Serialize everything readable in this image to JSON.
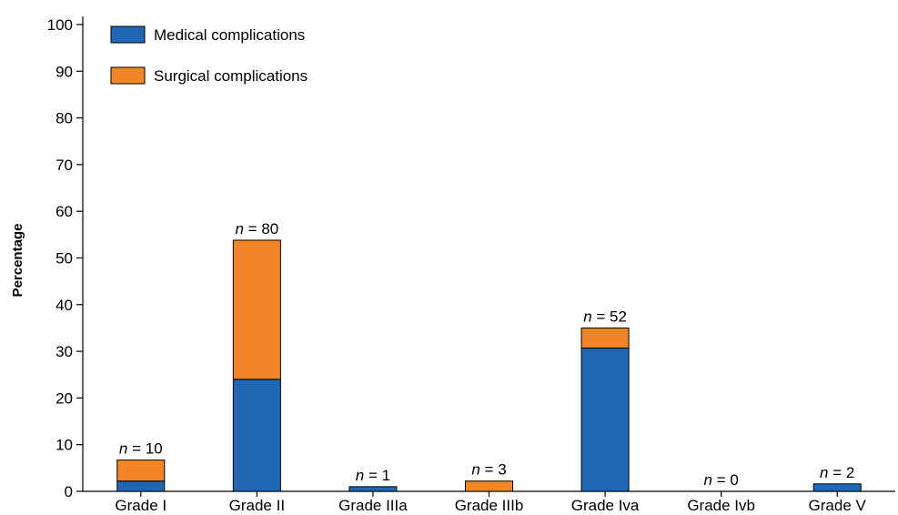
{
  "chart_data": {
    "type": "bar",
    "stacked": true,
    "categories": [
      "Grade I",
      "Grade II",
      "Grade IIIa",
      "Grade IIIb",
      "Grade Iva",
      "Grade Ivb",
      "Grade V"
    ],
    "series": [
      {
        "name": "Medical complications",
        "values": [
          2.2,
          24,
          1,
          0,
          30.7,
          0,
          1.6
        ],
        "color": "#1f66b5"
      },
      {
        "name": "Surgical complications",
        "values": [
          4.5,
          29.8,
          0,
          2.2,
          4.3,
          0,
          0
        ],
        "color": "#f28526"
      }
    ],
    "n_labels": [
      "10",
      "80",
      "1",
      "3",
      "52",
      "0",
      "2"
    ],
    "n_prefix": "n",
    "n_equals": " = ",
    "ylabel": "Percentage",
    "xlabel": "",
    "ylim": [
      0,
      100
    ],
    "yticks": [
      "0",
      "10",
      "20",
      "30",
      "40",
      "50",
      "60",
      "70",
      "80",
      "90",
      "100"
    ],
    "grid": false,
    "legend_position": "top-left"
  }
}
